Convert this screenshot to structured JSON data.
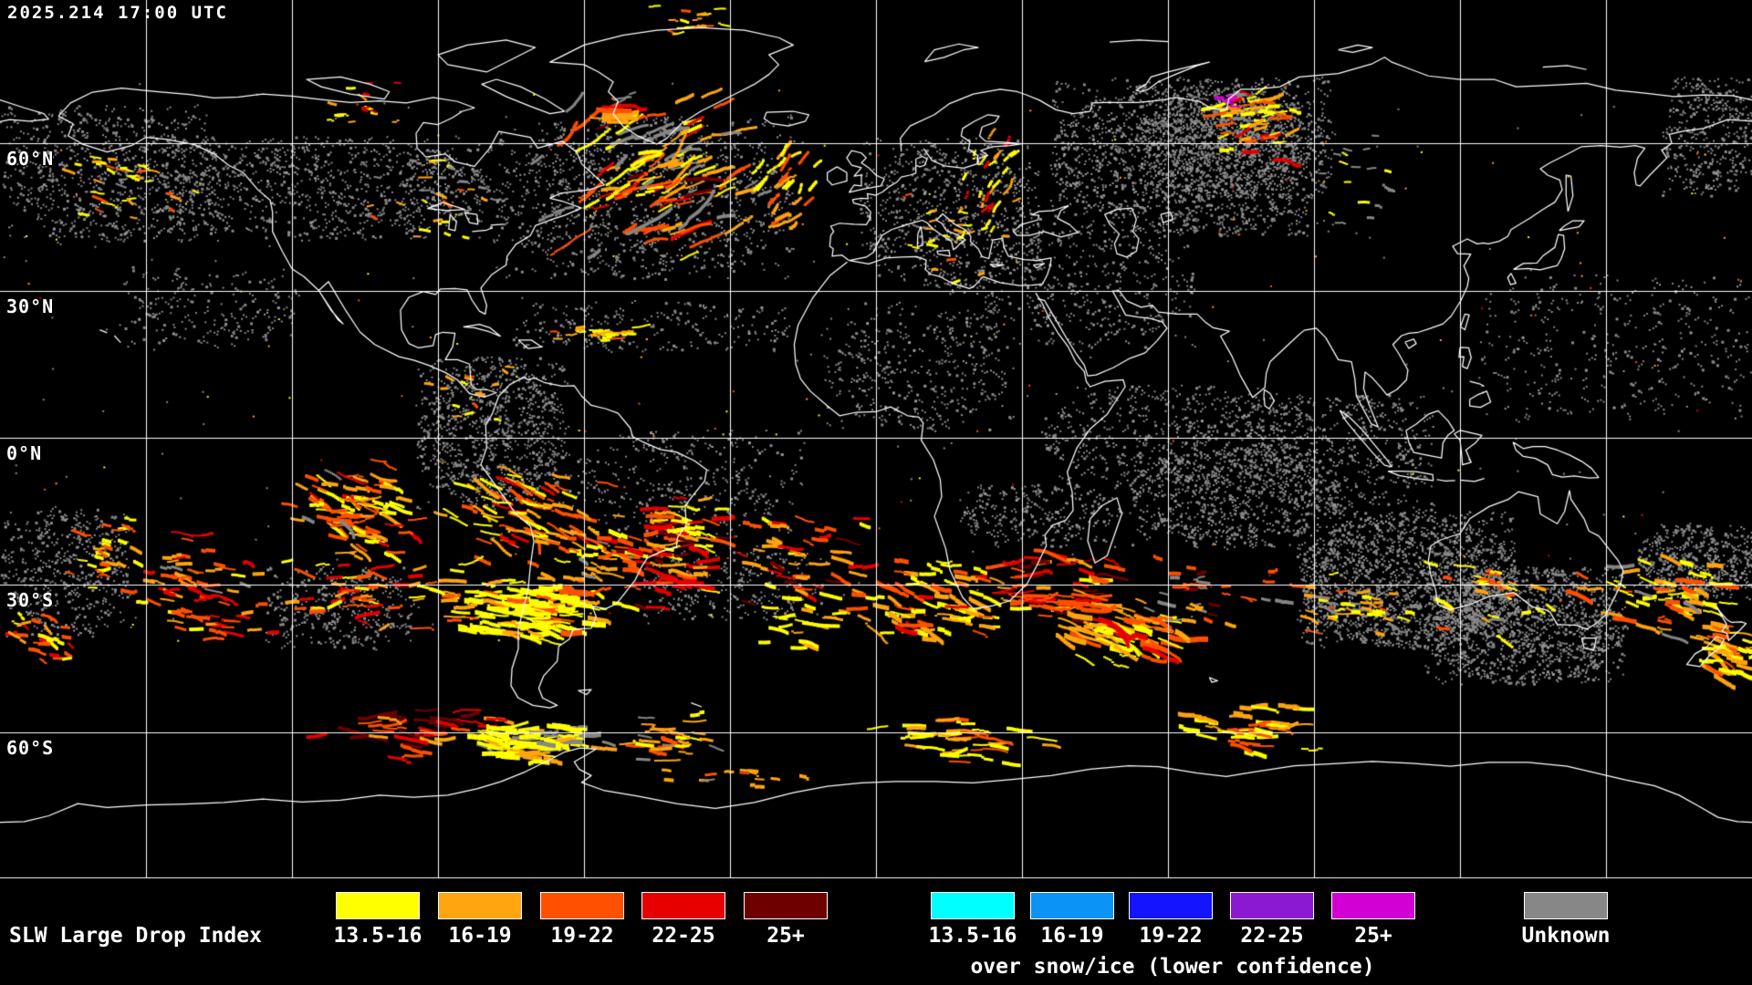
{
  "header": {
    "timestamp": "2025.214 17:00 UTC"
  },
  "map": {
    "latitude_labels": [
      {
        "label": "60°N",
        "deg": 60
      },
      {
        "label": "30°N",
        "deg": 30
      },
      {
        "label": "0°N",
        "deg": 0
      },
      {
        "label": "30°S",
        "deg": -30
      },
      {
        "label": "60°S",
        "deg": -60
      }
    ],
    "longitude_grid_step_deg": 30,
    "background_color": "#000000",
    "grid_color": "#ffffff",
    "coastline_color": "#ffffff"
  },
  "legend": {
    "title": "SLW Large Drop Index",
    "primary": [
      {
        "range": "13.5-16",
        "color": "#ffff00"
      },
      {
        "range": "16-19",
        "color": "#ffa510"
      },
      {
        "range": "19-22",
        "color": "#ff5000"
      },
      {
        "range": "22-25",
        "color": "#e60000"
      },
      {
        "range": "25+",
        "color": "#6e0000"
      }
    ],
    "snow_ice": [
      {
        "range": "13.5-16",
        "color": "#00ffff"
      },
      {
        "range": "16-19",
        "color": "#0b93f5"
      },
      {
        "range": "19-22",
        "color": "#1414ff"
      },
      {
        "range": "22-25",
        "color": "#8c19d2"
      },
      {
        "range": "25+",
        "color": "#d200d2"
      }
    ],
    "snow_ice_caption": "over snow/ice (lower confidence)",
    "unknown": {
      "label": "Unknown",
      "color": "#878787"
    }
  }
}
